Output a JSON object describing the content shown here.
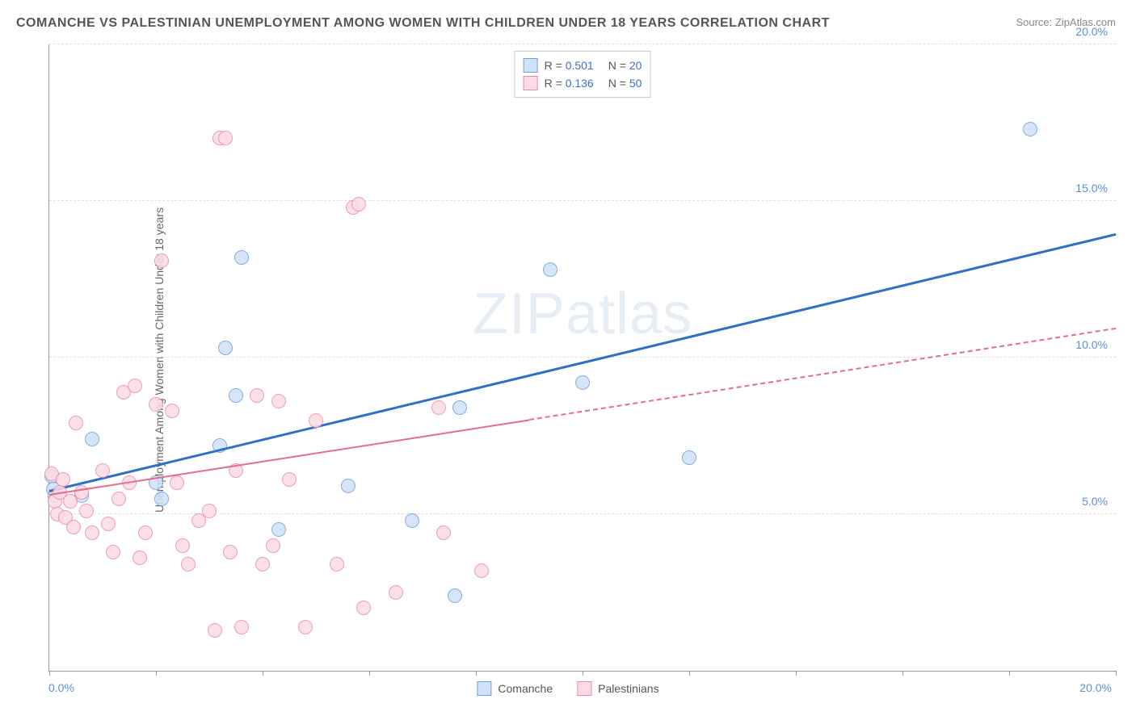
{
  "title": "COMANCHE VS PALESTINIAN UNEMPLOYMENT AMONG WOMEN WITH CHILDREN UNDER 18 YEARS CORRELATION CHART",
  "source_label": "Source: ",
  "source_name": "ZipAtlas.com",
  "ylabel": "Unemployment Among Women with Children Under 18 years",
  "watermark_a": "ZIP",
  "watermark_b": "atlas",
  "chart": {
    "type": "scatter",
    "xlim": [
      0,
      20
    ],
    "ylim": [
      0,
      20
    ],
    "x_axis_min_label": "0.0%",
    "x_axis_max_label": "20.0%",
    "y_ticks": [
      5,
      10,
      15,
      20
    ],
    "y_tick_labels": [
      "5.0%",
      "10.0%",
      "15.0%",
      "20.0%"
    ],
    "x_tick_positions": [
      0,
      2,
      4,
      6,
      8,
      10,
      12,
      14,
      16,
      18,
      20
    ],
    "grid_color": "#e0e0e0",
    "axis_color": "#999999",
    "tick_label_color": "#5b8fd6",
    "background_color": "#ffffff",
    "marker_radius": 9,
    "marker_border_width": 1.5,
    "series": [
      {
        "name": "Comanche",
        "fill": "#cfe2f7",
        "stroke": "#6aa2de",
        "r_value": "0.501",
        "n_value": "20",
        "trend": {
          "x1": 0,
          "y1": 5.7,
          "x2": 20,
          "y2": 13.9,
          "solid_until_x": 20,
          "color": "#2e6fc9",
          "width": 3
        },
        "points": [
          [
            0.05,
            6.2
          ],
          [
            0.08,
            5.8
          ],
          [
            0.1,
            5.6
          ],
          [
            0.6,
            5.6
          ],
          [
            0.8,
            7.4
          ],
          [
            2.0,
            6.0
          ],
          [
            2.1,
            5.5
          ],
          [
            3.2,
            7.2
          ],
          [
            3.3,
            10.3
          ],
          [
            3.5,
            8.8
          ],
          [
            3.6,
            13.2
          ],
          [
            4.3,
            4.5
          ],
          [
            5.6,
            5.9
          ],
          [
            6.8,
            4.8
          ],
          [
            7.6,
            2.4
          ],
          [
            7.7,
            8.4
          ],
          [
            9.4,
            12.8
          ],
          [
            10.0,
            9.2
          ],
          [
            12.0,
            6.8
          ],
          [
            18.4,
            17.3
          ]
        ]
      },
      {
        "name": "Palestinians",
        "fill": "#fcdbe4",
        "stroke": "#e98ba6",
        "r_value": "0.136",
        "n_value": "50",
        "trend": {
          "x1": 0,
          "y1": 5.6,
          "x2": 20,
          "y2": 10.9,
          "solid_until_x": 9.0,
          "color": "#e86b8f",
          "width": 2.5
        },
        "points": [
          [
            0.05,
            6.3
          ],
          [
            0.1,
            5.4
          ],
          [
            0.15,
            5.0
          ],
          [
            0.2,
            5.7
          ],
          [
            0.25,
            6.1
          ],
          [
            0.3,
            4.9
          ],
          [
            0.4,
            5.4
          ],
          [
            0.45,
            4.6
          ],
          [
            0.5,
            7.9
          ],
          [
            0.6,
            5.7
          ],
          [
            0.7,
            5.1
          ],
          [
            0.8,
            4.4
          ],
          [
            1.0,
            6.4
          ],
          [
            1.1,
            4.7
          ],
          [
            1.2,
            3.8
          ],
          [
            1.3,
            5.5
          ],
          [
            1.4,
            8.9
          ],
          [
            1.5,
            6.0
          ],
          [
            1.6,
            9.1
          ],
          [
            1.7,
            3.6
          ],
          [
            1.8,
            4.4
          ],
          [
            2.0,
            8.5
          ],
          [
            2.1,
            13.1
          ],
          [
            2.3,
            8.3
          ],
          [
            2.4,
            6.0
          ],
          [
            2.5,
            4.0
          ],
          [
            2.6,
            3.4
          ],
          [
            2.8,
            4.8
          ],
          [
            3.0,
            5.1
          ],
          [
            3.1,
            1.3
          ],
          [
            3.2,
            17.0
          ],
          [
            3.3,
            17.0
          ],
          [
            3.4,
            3.8
          ],
          [
            3.5,
            6.4
          ],
          [
            3.6,
            1.4
          ],
          [
            3.9,
            8.8
          ],
          [
            4.0,
            3.4
          ],
          [
            4.2,
            4.0
          ],
          [
            4.3,
            8.6
          ],
          [
            4.5,
            6.1
          ],
          [
            4.8,
            1.4
          ],
          [
            5.0,
            8.0
          ],
          [
            5.4,
            3.4
          ],
          [
            5.7,
            14.8
          ],
          [
            5.8,
            14.9
          ],
          [
            5.9,
            2.0
          ],
          [
            6.5,
            2.5
          ],
          [
            7.3,
            8.4
          ],
          [
            7.4,
            4.4
          ],
          [
            8.1,
            3.2
          ]
        ]
      }
    ]
  },
  "legend_bottom": [
    {
      "label": "Comanche",
      "fill": "#cfe2f7",
      "stroke": "#6aa2de"
    },
    {
      "label": "Palestinians",
      "fill": "#fcdbe4",
      "stroke": "#e98ba6"
    }
  ]
}
